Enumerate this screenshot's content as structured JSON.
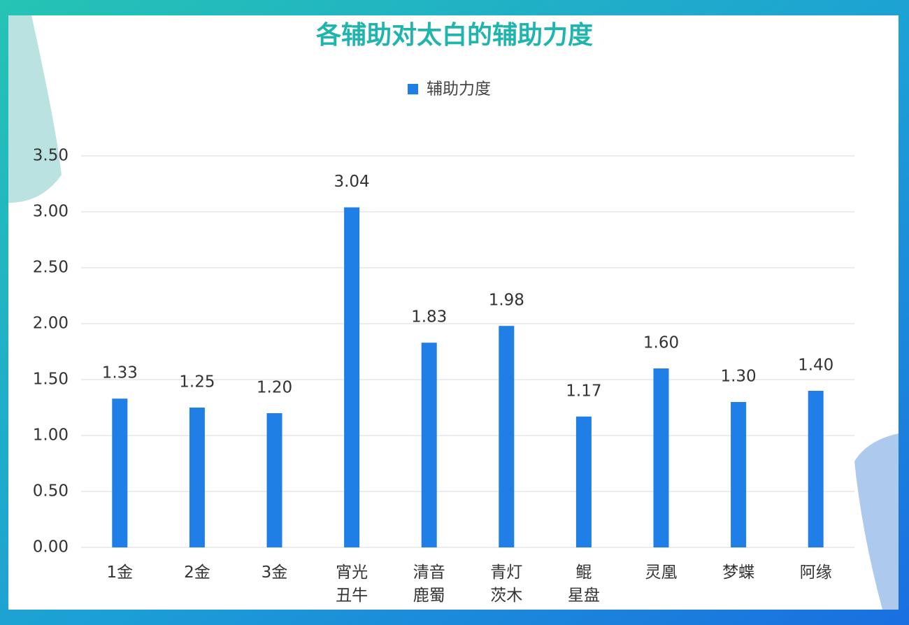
{
  "chart_data": {
    "type": "bar",
    "title": "各辅助对太白的辅助力度",
    "series": [
      {
        "name": "辅助力度",
        "color": "#1f7fe6",
        "values": [
          1.33,
          1.25,
          1.2,
          3.04,
          1.83,
          1.98,
          1.17,
          1.6,
          1.3,
          1.4
        ],
        "value_labels": [
          "1.33",
          "1.25",
          "1.20",
          "3.04",
          "1.83",
          "1.98",
          "1.17",
          "1.60",
          "1.30",
          "1.40"
        ]
      }
    ],
    "categories": [
      "1金",
      "2金",
      "3金",
      "宵光\n丑牛",
      "清音\n鹿蜀",
      "青灯\n茨木",
      "鲲\n星盘",
      "灵凰",
      "梦蝶",
      "阿缘"
    ],
    "ylim": [
      0,
      3.5
    ],
    "yticks": [
      {
        "value": 0,
        "label": "0.00"
      },
      {
        "value": 0.5,
        "label": "0.50"
      },
      {
        "value": 1,
        "label": "1.00"
      },
      {
        "value": 1.5,
        "label": "1.50"
      },
      {
        "value": 2,
        "label": "2.00"
      },
      {
        "value": 2.5,
        "label": "2.50"
      },
      {
        "value": 3,
        "label": "3.00"
      },
      {
        "value": 3.5,
        "label": "3.50"
      }
    ],
    "grid": true,
    "legend": "top"
  }
}
